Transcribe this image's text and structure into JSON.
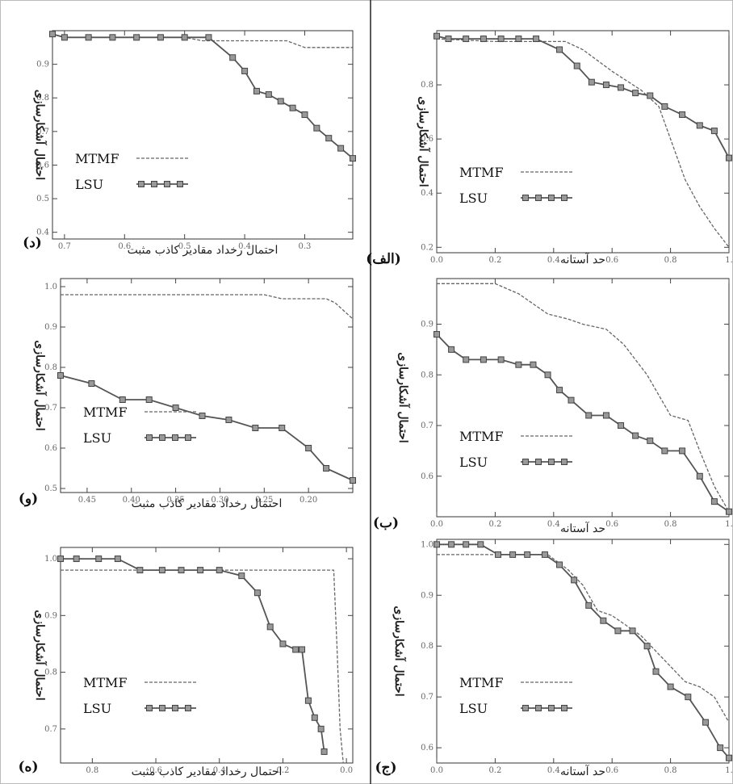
{
  "chart_data": [
    {
      "id": "alef",
      "type": "line",
      "panel_label": "(الف)",
      "xlabel": "حد آستانه",
      "ylabel": "احتمال آشکارسازی",
      "xlim": [
        0,
        1
      ],
      "ylim": [
        0.18,
        1.0
      ],
      "x_reversed": false,
      "xticks": [
        {
          "v": 0,
          "t": "0.0"
        },
        {
          "v": 0.2,
          "t": "0.2"
        },
        {
          "v": 0.4,
          "t": "0.4"
        },
        {
          "v": 0.6,
          "t": "0.6"
        },
        {
          "v": 0.8,
          "t": "0.8"
        },
        {
          "v": 1,
          "t": "1."
        }
      ],
      "yticks": [
        {
          "v": 0.2,
          "t": "0.2"
        },
        {
          "v": 0.4,
          "t": "0.4"
        },
        {
          "v": 0.6,
          "t": "0.6"
        },
        {
          "v": 0.8,
          "t": "0.8"
        }
      ],
      "legend": {
        "position": "bottom-left",
        "entries": [
          "MTMF",
          "LSU"
        ]
      },
      "series": [
        {
          "name": "MTMF",
          "style": "dashed",
          "points": [
            [
              0,
              0.97
            ],
            [
              0.2,
              0.96
            ],
            [
              0.44,
              0.96
            ],
            [
              0.5,
              0.93
            ],
            [
              0.6,
              0.85
            ],
            [
              0.7,
              0.78
            ],
            [
              0.76,
              0.72
            ],
            [
              0.8,
              0.6
            ],
            [
              0.85,
              0.45
            ],
            [
              0.9,
              0.35
            ],
            [
              0.95,
              0.27
            ],
            [
              1.0,
              0.2
            ]
          ]
        },
        {
          "name": "LSU",
          "style": "markers",
          "points": [
            [
              0,
              0.98
            ],
            [
              0.04,
              0.97
            ],
            [
              0.1,
              0.97
            ],
            [
              0.16,
              0.97
            ],
            [
              0.22,
              0.97
            ],
            [
              0.28,
              0.97
            ],
            [
              0.34,
              0.97
            ],
            [
              0.42,
              0.93
            ],
            [
              0.48,
              0.87
            ],
            [
              0.53,
              0.81
            ],
            [
              0.58,
              0.8
            ],
            [
              0.63,
              0.79
            ],
            [
              0.68,
              0.77
            ],
            [
              0.73,
              0.76
            ],
            [
              0.78,
              0.72
            ],
            [
              0.84,
              0.69
            ],
            [
              0.9,
              0.65
            ],
            [
              0.95,
              0.63
            ],
            [
              1.0,
              0.53
            ]
          ]
        }
      ]
    },
    {
      "id": "dal",
      "type": "line",
      "panel_label": "(د)",
      "xlabel": "احتمال رخداد مقادیر کاذب مثبت",
      "ylabel": "احتمال آشکارسازی",
      "xlim": [
        0.72,
        0.22
      ],
      "ylim": [
        0.38,
        1.0
      ],
      "x_reversed": true,
      "xticks": [
        {
          "v": 0.7,
          "t": "0.7"
        },
        {
          "v": 0.6,
          "t": "0.6"
        },
        {
          "v": 0.5,
          "t": "0.5"
        },
        {
          "v": 0.4,
          "t": "0.4"
        },
        {
          "v": 0.3,
          "t": "0.3"
        }
      ],
      "yticks": [
        {
          "v": 0.4,
          "t": "0.4"
        },
        {
          "v": 0.5,
          "t": "0.5"
        },
        {
          "v": 0.6,
          "t": "0.6"
        },
        {
          "v": 0.7,
          "t": "0.7"
        },
        {
          "v": 0.8,
          "t": "0.8"
        },
        {
          "v": 0.9,
          "t": "0.9"
        }
      ],
      "legend": {
        "position": "bottom-left",
        "entries": [
          "MTMF",
          "LSU"
        ]
      },
      "series": [
        {
          "name": "MTMF",
          "style": "dashed",
          "points": [
            [
              0.72,
              0.99
            ],
            [
              0.7,
              0.98
            ],
            [
              0.5,
              0.98
            ],
            [
              0.47,
              0.97
            ],
            [
              0.33,
              0.97
            ],
            [
              0.3,
              0.95
            ],
            [
              0.22,
              0.95
            ]
          ]
        },
        {
          "name": "LSU",
          "style": "markers",
          "points": [
            [
              0.72,
              0.99
            ],
            [
              0.7,
              0.98
            ],
            [
              0.66,
              0.98
            ],
            [
              0.62,
              0.98
            ],
            [
              0.58,
              0.98
            ],
            [
              0.54,
              0.98
            ],
            [
              0.5,
              0.98
            ],
            [
              0.46,
              0.98
            ],
            [
              0.42,
              0.92
            ],
            [
              0.4,
              0.88
            ],
            [
              0.38,
              0.82
            ],
            [
              0.36,
              0.81
            ],
            [
              0.34,
              0.79
            ],
            [
              0.32,
              0.77
            ],
            [
              0.3,
              0.75
            ],
            [
              0.28,
              0.71
            ],
            [
              0.26,
              0.68
            ],
            [
              0.24,
              0.65
            ],
            [
              0.22,
              0.62
            ]
          ]
        }
      ]
    },
    {
      "id": "be",
      "type": "line",
      "panel_label": "(ب)",
      "xlabel": "حد آستانه",
      "ylabel": "احتمال آشکارسازی",
      "xlim": [
        0,
        1
      ],
      "ylim": [
        0.52,
        0.99
      ],
      "x_reversed": false,
      "xticks": [
        {
          "v": 0,
          "t": "0.0"
        },
        {
          "v": 0.2,
          "t": "0.2"
        },
        {
          "v": 0.4,
          "t": "0.4"
        },
        {
          "v": 0.6,
          "t": "0.6"
        },
        {
          "v": 0.8,
          "t": "0.8"
        },
        {
          "v": 1,
          "t": "1."
        }
      ],
      "yticks": [
        {
          "v": 0.6,
          "t": "0.6"
        },
        {
          "v": 0.7,
          "t": "0.7"
        },
        {
          "v": 0.8,
          "t": "0.8"
        },
        {
          "v": 0.9,
          "t": "0.9"
        }
      ],
      "legend": {
        "position": "bottom-left",
        "entries": [
          "MTMF",
          "LSU"
        ]
      },
      "series": [
        {
          "name": "MTMF",
          "style": "dashed",
          "points": [
            [
              0,
              0.98
            ],
            [
              0.2,
              0.98
            ],
            [
              0.28,
              0.96
            ],
            [
              0.38,
              0.92
            ],
            [
              0.45,
              0.91
            ],
            [
              0.5,
              0.9
            ],
            [
              0.58,
              0.89
            ],
            [
              0.64,
              0.86
            ],
            [
              0.72,
              0.8
            ],
            [
              0.8,
              0.72
            ],
            [
              0.86,
              0.71
            ],
            [
              0.9,
              0.65
            ],
            [
              0.95,
              0.58
            ],
            [
              1.0,
              0.53
            ]
          ]
        },
        {
          "name": "LSU",
          "style": "markers",
          "points": [
            [
              0,
              0.88
            ],
            [
              0.05,
              0.85
            ],
            [
              0.1,
              0.83
            ],
            [
              0.16,
              0.83
            ],
            [
              0.22,
              0.83
            ],
            [
              0.28,
              0.82
            ],
            [
              0.33,
              0.82
            ],
            [
              0.38,
              0.8
            ],
            [
              0.42,
              0.77
            ],
            [
              0.46,
              0.75
            ],
            [
              0.52,
              0.72
            ],
            [
              0.58,
              0.72
            ],
            [
              0.63,
              0.7
            ],
            [
              0.68,
              0.68
            ],
            [
              0.73,
              0.67
            ],
            [
              0.78,
              0.65
            ],
            [
              0.84,
              0.65
            ],
            [
              0.9,
              0.6
            ],
            [
              0.95,
              0.55
            ],
            [
              1.0,
              0.53
            ]
          ]
        }
      ]
    },
    {
      "id": "vav",
      "type": "line",
      "panel_label": "(و)",
      "xlabel": "احتمال رخداد مقادیر کاذب مثبت",
      "ylabel": "احتمال آشکارسازی",
      "xlim": [
        0.48,
        0.15
      ],
      "ylim": [
        0.49,
        1.02
      ],
      "x_reversed": true,
      "xticks": [
        {
          "v": 0.45,
          "t": "0.45"
        },
        {
          "v": 0.4,
          "t": "0.40"
        },
        {
          "v": 0.35,
          "t": "0.35"
        },
        {
          "v": 0.3,
          "t": "0.30"
        },
        {
          "v": 0.25,
          "t": "0.25"
        },
        {
          "v": 0.2,
          "t": "0.20"
        }
      ],
      "yticks": [
        {
          "v": 0.5,
          "t": "0.5"
        },
        {
          "v": 0.6,
          "t": "0.6"
        },
        {
          "v": 0.7,
          "t": "0.7"
        },
        {
          "v": 0.8,
          "t": "0.8"
        },
        {
          "v": 0.9,
          "t": "0.9"
        },
        {
          "v": 1.0,
          "t": "1.0"
        }
      ],
      "legend": {
        "position": "bottom-left",
        "entries": [
          "MTMF",
          "LSU"
        ]
      },
      "series": [
        {
          "name": "MTMF",
          "style": "dashed",
          "points": [
            [
              0.48,
              0.98
            ],
            [
              0.25,
              0.98
            ],
            [
              0.23,
              0.97
            ],
            [
              0.18,
              0.97
            ],
            [
              0.17,
              0.96
            ],
            [
              0.15,
              0.92
            ]
          ]
        },
        {
          "name": "LSU",
          "style": "markers",
          "points": [
            [
              0.48,
              0.78
            ],
            [
              0.445,
              0.76
            ],
            [
              0.41,
              0.72
            ],
            [
              0.38,
              0.72
            ],
            [
              0.35,
              0.7
            ],
            [
              0.32,
              0.68
            ],
            [
              0.29,
              0.67
            ],
            [
              0.26,
              0.65
            ],
            [
              0.23,
              0.65
            ],
            [
              0.2,
              0.6
            ],
            [
              0.18,
              0.55
            ],
            [
              0.15,
              0.52
            ]
          ]
        }
      ]
    },
    {
      "id": "jim",
      "type": "line",
      "panel_label": "(ج)",
      "xlabel": "حد آستانه",
      "ylabel": "احتمال آشکارسازی",
      "xlim": [
        0,
        1
      ],
      "ylim": [
        0.57,
        1.01
      ],
      "x_reversed": false,
      "xticks": [
        {
          "v": 0,
          "t": "0.0"
        },
        {
          "v": 0.2,
          "t": "0.2"
        },
        {
          "v": 0.4,
          "t": "0.4"
        },
        {
          "v": 0.6,
          "t": "0.6"
        },
        {
          "v": 0.8,
          "t": "0.8"
        },
        {
          "v": 1,
          "t": "1."
        }
      ],
      "yticks": [
        {
          "v": 0.6,
          "t": "0.6"
        },
        {
          "v": 0.7,
          "t": "0.7"
        },
        {
          "v": 0.8,
          "t": "0.8"
        },
        {
          "v": 0.9,
          "t": "0.9"
        },
        {
          "v": 1.0,
          "t": "1.0"
        }
      ],
      "legend": {
        "position": "bottom-left",
        "entries": [
          "MTMF",
          "LSU"
        ]
      },
      "series": [
        {
          "name": "MTMF",
          "style": "dashed",
          "points": [
            [
              0,
              0.98
            ],
            [
              0.38,
              0.98
            ],
            [
              0.45,
              0.95
            ],
            [
              0.5,
              0.92
            ],
            [
              0.55,
              0.87
            ],
            [
              0.6,
              0.86
            ],
            [
              0.65,
              0.84
            ],
            [
              0.7,
              0.82
            ],
            [
              0.75,
              0.79
            ],
            [
              0.8,
              0.76
            ],
            [
              0.85,
              0.73
            ],
            [
              0.9,
              0.72
            ],
            [
              0.95,
              0.7
            ],
            [
              1.0,
              0.65
            ]
          ]
        },
        {
          "name": "LSU",
          "style": "markers",
          "points": [
            [
              0,
              1.0
            ],
            [
              0.05,
              1.0
            ],
            [
              0.1,
              1.0
            ],
            [
              0.15,
              1.0
            ],
            [
              0.21,
              0.98
            ],
            [
              0.26,
              0.98
            ],
            [
              0.31,
              0.98
            ],
            [
              0.37,
              0.98
            ],
            [
              0.42,
              0.96
            ],
            [
              0.47,
              0.93
            ],
            [
              0.52,
              0.88
            ],
            [
              0.57,
              0.85
            ],
            [
              0.62,
              0.83
            ],
            [
              0.67,
              0.83
            ],
            [
              0.72,
              0.8
            ],
            [
              0.75,
              0.75
            ],
            [
              0.8,
              0.72
            ],
            [
              0.86,
              0.7
            ],
            [
              0.92,
              0.65
            ],
            [
              0.97,
              0.6
            ],
            [
              1.0,
              0.58
            ]
          ]
        }
      ]
    },
    {
      "id": "he",
      "type": "line",
      "panel_label": "(ه)",
      "xlabel": "احتمال رخداد مقادیر کاذب مثبت",
      "ylabel": "احتمال آشکارسازی",
      "xlim": [
        0.9,
        -0.02
      ],
      "ylim": [
        0.64,
        1.02
      ],
      "x_reversed": true,
      "xticks": [
        {
          "v": 0.8,
          "t": "0.8"
        },
        {
          "v": 0.6,
          "t": "0.6"
        },
        {
          "v": 0.4,
          "t": "0.4"
        },
        {
          "v": 0.2,
          "t": "0.2"
        },
        {
          "v": 0.0,
          "t": "0.0"
        }
      ],
      "yticks": [
        {
          "v": 0.7,
          "t": "0.7"
        },
        {
          "v": 0.8,
          "t": "0.8"
        },
        {
          "v": 0.9,
          "t": "0.9"
        },
        {
          "v": 1.0,
          "t": "1.0"
        }
      ],
      "legend": {
        "position": "bottom-left",
        "entries": [
          "MTMF",
          "LSU"
        ]
      },
      "series": [
        {
          "name": "MTMF",
          "style": "dashed",
          "points": [
            [
              0.9,
              0.98
            ],
            [
              0.04,
              0.98
            ],
            [
              0.03,
              0.85
            ],
            [
              0.02,
              0.7
            ],
            [
              0.01,
              0.64
            ]
          ]
        },
        {
          "name": "LSU",
          "style": "markers",
          "points": [
            [
              0.9,
              1.0
            ],
            [
              0.85,
              1.0
            ],
            [
              0.78,
              1.0
            ],
            [
              0.72,
              1.0
            ],
            [
              0.65,
              0.98
            ],
            [
              0.58,
              0.98
            ],
            [
              0.52,
              0.98
            ],
            [
              0.46,
              0.98
            ],
            [
              0.4,
              0.98
            ],
            [
              0.33,
              0.97
            ],
            [
              0.28,
              0.94
            ],
            [
              0.24,
              0.88
            ],
            [
              0.2,
              0.85
            ],
            [
              0.16,
              0.84
            ],
            [
              0.14,
              0.84
            ],
            [
              0.12,
              0.75
            ],
            [
              0.1,
              0.72
            ],
            [
              0.08,
              0.7
            ],
            [
              0.07,
              0.66
            ]
          ]
        }
      ]
    }
  ]
}
